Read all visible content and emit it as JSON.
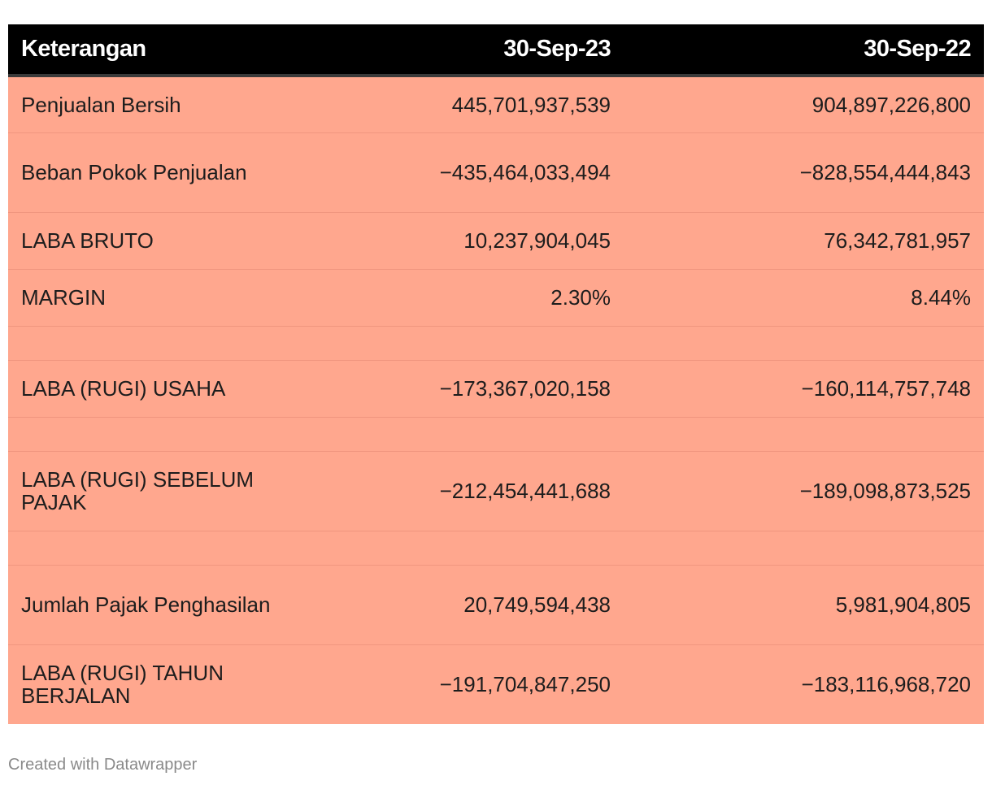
{
  "chart_data": {
    "type": "table",
    "columns": [
      "Keterangan",
      "30-Sep-23",
      "30-Sep-22"
    ],
    "rows": [
      {
        "label": "Penjualan Bersih",
        "values": [
          "445,701,937,539",
          "904,897,226,800"
        ],
        "lines": 1
      },
      {
        "label": "Beban Pokok Penjualan",
        "values": [
          "−435,464,033,494",
          "−828,554,444,843"
        ],
        "lines": 2
      },
      {
        "label": "LABA BRUTO",
        "values": [
          "10,237,904,045",
          "76,342,781,957"
        ],
        "lines": 1
      },
      {
        "label": "MARGIN",
        "values": [
          "2.30%",
          "8.44%"
        ],
        "lines": 1
      },
      {
        "label": "",
        "values": [
          "",
          ""
        ],
        "lines": 0
      },
      {
        "label": "LABA (RUGI) USAHA",
        "values": [
          "−173,367,020,158",
          "−160,114,757,748"
        ],
        "lines": 1
      },
      {
        "label": "",
        "values": [
          "",
          ""
        ],
        "lines": 0
      },
      {
        "label": "LABA (RUGI) SEBELUM PAJAK",
        "values": [
          "−212,454,441,688",
          "−189,098,873,525"
        ],
        "lines": 2
      },
      {
        "label": "",
        "values": [
          "",
          ""
        ],
        "lines": 0
      },
      {
        "label": "Jumlah Pajak Penghasilan",
        "values": [
          "20,749,594,438",
          "5,981,904,805"
        ],
        "lines": 2
      },
      {
        "label": "LABA (RUGI) TAHUN BERJALAN",
        "values": [
          "−191,704,847,250",
          "−183,116,968,720"
        ],
        "lines": 2
      }
    ],
    "header_color": "#000000",
    "row_color": "#ffa78e"
  },
  "footer": {
    "credit": "Created with Datawrapper"
  }
}
